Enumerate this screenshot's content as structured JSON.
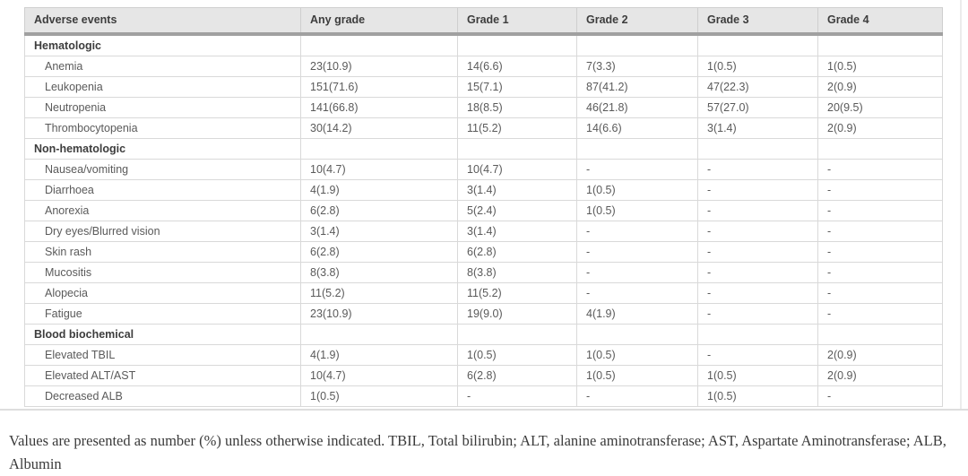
{
  "table": {
    "columns": [
      "Adverse events",
      "Any grade",
      "Grade 1",
      "Grade 2",
      "Grade 3",
      "Grade 4"
    ],
    "sections": [
      {
        "label": "Hematologic",
        "rows": [
          {
            "label": "Anemia",
            "values": [
              "23(10.9)",
              "14(6.6)",
              "7(3.3)",
              "1(0.5)",
              "1(0.5)"
            ]
          },
          {
            "label": "Leukopenia",
            "values": [
              "151(71.6)",
              "15(7.1)",
              "87(41.2)",
              "47(22.3)",
              "2(0.9)"
            ]
          },
          {
            "label": "Neutropenia",
            "values": [
              "141(66.8)",
              "18(8.5)",
              "46(21.8)",
              "57(27.0)",
              "20(9.5)"
            ]
          },
          {
            "label": "Thrombocytopenia",
            "values": [
              "30(14.2)",
              "11(5.2)",
              "14(6.6)",
              "3(1.4)",
              "2(0.9)"
            ]
          }
        ]
      },
      {
        "label": "Non-hematologic",
        "rows": [
          {
            "label": "Nausea/vomiting",
            "values": [
              "10(4.7)",
              "10(4.7)",
              "-",
              "-",
              "-"
            ]
          },
          {
            "label": "Diarrhoea",
            "values": [
              "4(1.9)",
              "3(1.4)",
              "1(0.5)",
              "-",
              "-"
            ]
          },
          {
            "label": "Anorexia",
            "values": [
              "6(2.8)",
              "5(2.4)",
              "1(0.5)",
              "-",
              "-"
            ]
          },
          {
            "label": "Dry eyes/Blurred vision",
            "values": [
              "3(1.4)",
              "3(1.4)",
              "-",
              "-",
              "-"
            ]
          },
          {
            "label": "Skin rash",
            "values": [
              "6(2.8)",
              "6(2.8)",
              "-",
              "-",
              "-"
            ]
          },
          {
            "label": "Mucositis",
            "values": [
              "8(3.8)",
              "8(3.8)",
              "-",
              "-",
              "-"
            ]
          },
          {
            "label": "Alopecia",
            "values": [
              "11(5.2)",
              "11(5.2)",
              "-",
              "-",
              "-"
            ]
          },
          {
            "label": "Fatigue",
            "values": [
              "23(10.9)",
              "19(9.0)",
              "4(1.9)",
              "-",
              "-"
            ]
          }
        ]
      },
      {
        "label": "Blood biochemical",
        "rows": [
          {
            "label": "Elevated TBIL",
            "values": [
              "4(1.9)",
              "1(0.5)",
              "1(0.5)",
              "-",
              "2(0.9)"
            ]
          },
          {
            "label": "Elevated ALT/AST",
            "values": [
              "10(4.7)",
              "6(2.8)",
              "1(0.5)",
              "1(0.5)",
              "2(0.9)"
            ]
          },
          {
            "label": "Decreased ALB",
            "values": [
              "1(0.5)",
              "-",
              "-",
              "1(0.5)",
              "-"
            ]
          }
        ]
      }
    ]
  },
  "footnote": "Values are presented as number (%) unless otherwise indicated. TBIL, Total bilirubin; ALT, alanine aminotransferase; AST, Aspartate Aminotransferase; ALB, Albumin",
  "colors": {
    "header_bg": "#e6e6e6",
    "header_separator": "#a0a0a0",
    "grid_border": "#d9d9d9",
    "body_text": "#5a5a5a",
    "heading_text": "#3d3d3d"
  }
}
